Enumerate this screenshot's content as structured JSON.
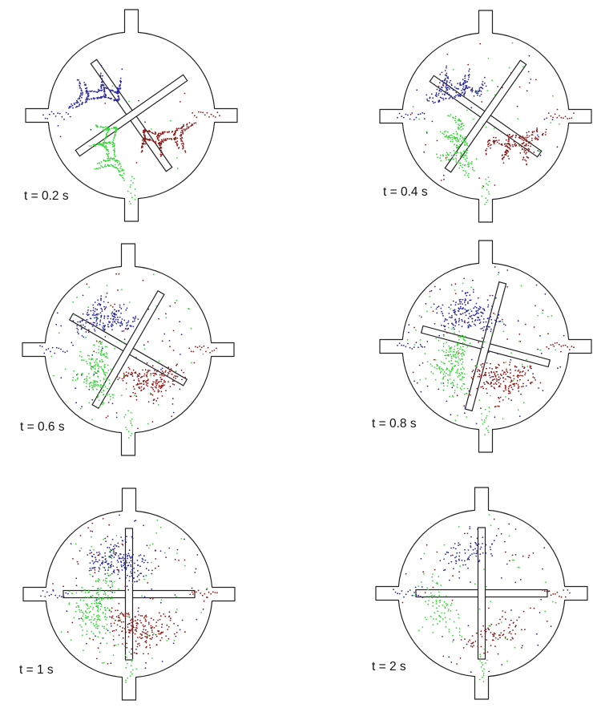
{
  "colors": {
    "inlet_left": "#2a2a9a",
    "inlet_right": "#8b1a1a",
    "inlet_bottom": "#3ad63a",
    "outline": "#222222"
  },
  "panels": [
    {
      "id": "t02",
      "label": "t = 0.2 s",
      "rotor_angle_deg": 55,
      "particle_density": 1.0,
      "mixing": 0.05
    },
    {
      "id": "t04",
      "label": "t = 0.4 s",
      "rotor_angle_deg": 35,
      "particle_density": 0.9,
      "mixing": 0.25
    },
    {
      "id": "t06",
      "label": "t = 0.6 s",
      "rotor_angle_deg": 30,
      "particle_density": 0.85,
      "mixing": 0.45
    },
    {
      "id": "t08",
      "label": "t = 0.8 s",
      "rotor_angle_deg": 15,
      "particle_density": 0.8,
      "mixing": 0.6
    },
    {
      "id": "t1",
      "label": "t = 1 s",
      "rotor_angle_deg": 0,
      "particle_density": 0.75,
      "mixing": 0.75
    },
    {
      "id": "t2",
      "label": "t = 2 s",
      "rotor_angle_deg": 0,
      "particle_density": 0.35,
      "mixing": 1.0
    }
  ]
}
